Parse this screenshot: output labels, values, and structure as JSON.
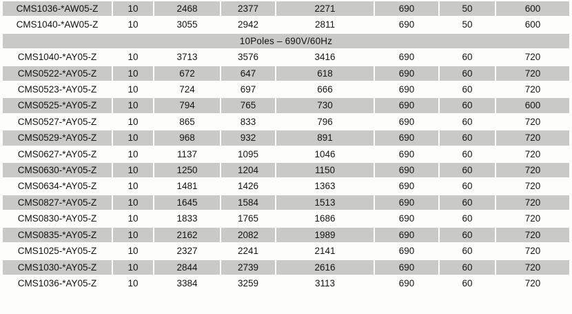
{
  "page": {
    "background_color": "#fdfdfc",
    "text_color": "#141414"
  },
  "table": {
    "column_count": 8,
    "row_shade_color": "#c9c9c5",
    "rows": [
      {
        "type": "data",
        "shaded": true,
        "cells": [
          "CMS1036-*AW05-Z",
          "10",
          "2468",
          "2377",
          "2271",
          "690",
          "50",
          "600"
        ]
      },
      {
        "type": "data",
        "shaded": false,
        "cells": [
          "CMS1040-*AW05-Z",
          "10",
          "3055",
          "2942",
          "2811",
          "690",
          "50",
          "600"
        ]
      },
      {
        "type": "section",
        "shaded": true,
        "label": "10Poles – 690V/60Hz"
      },
      {
        "type": "data",
        "shaded": false,
        "cells": [
          "CMS1040-*AY05-Z",
          "10",
          "3713",
          "3576",
          "3416",
          "690",
          "60",
          "720"
        ]
      },
      {
        "type": "data",
        "shaded": true,
        "cells": [
          "CMS0522-*AY05-Z",
          "10",
          "672",
          "647",
          "618",
          "690",
          "60",
          "720"
        ]
      },
      {
        "type": "data",
        "shaded": false,
        "cells": [
          "CMS0523-*AY05-Z",
          "10",
          "724",
          "697",
          "666",
          "690",
          "60",
          "720"
        ]
      },
      {
        "type": "data",
        "shaded": true,
        "cells": [
          "CMS0525-*AY05-Z",
          "10",
          "794",
          "765",
          "730",
          "690",
          "60",
          "600"
        ]
      },
      {
        "type": "data",
        "shaded": false,
        "cells": [
          "CMS0527-*AY05-Z",
          "10",
          "865",
          "833",
          "796",
          "690",
          "60",
          "720"
        ]
      },
      {
        "type": "data",
        "shaded": true,
        "cells": [
          "CMS0529-*AY05-Z",
          "10",
          "968",
          "932",
          "891",
          "690",
          "60",
          "720"
        ]
      },
      {
        "type": "data",
        "shaded": false,
        "cells": [
          "CMS0627-*AY05-Z",
          "10",
          "1137",
          "1095",
          "1046",
          "690",
          "60",
          "720"
        ]
      },
      {
        "type": "data",
        "shaded": true,
        "cells": [
          "CMS0630-*AY05-Z",
          "10",
          "1250",
          "1204",
          "1150",
          "690",
          "60",
          "720"
        ]
      },
      {
        "type": "data",
        "shaded": false,
        "cells": [
          "CMS0634-*AY05-Z",
          "10",
          "1481",
          "1426",
          "1363",
          "690",
          "60",
          "720"
        ]
      },
      {
        "type": "data",
        "shaded": true,
        "cells": [
          "CMS0827-*AY05-Z",
          "10",
          "1645",
          "1584",
          "1513",
          "690",
          "60",
          "720"
        ]
      },
      {
        "type": "data",
        "shaded": false,
        "cells": [
          "CMS0830-*AY05-Z",
          "10",
          "1833",
          "1765",
          "1686",
          "690",
          "60",
          "720"
        ]
      },
      {
        "type": "data",
        "shaded": true,
        "cells": [
          "CMS0835-*AY05-Z",
          "10",
          "2162",
          "2082",
          "1989",
          "690",
          "60",
          "720"
        ]
      },
      {
        "type": "data",
        "shaded": false,
        "cells": [
          "CMS1025-*AY05-Z",
          "10",
          "2327",
          "2241",
          "2141",
          "690",
          "60",
          "720"
        ]
      },
      {
        "type": "data",
        "shaded": true,
        "cells": [
          "CMS1030-*AY05-Z",
          "10",
          "2844",
          "2739",
          "2616",
          "690",
          "60",
          "720"
        ]
      },
      {
        "type": "data",
        "shaded": false,
        "cells": [
          "CMS1036-*AY05-Z",
          "10",
          "3384",
          "3259",
          "3113",
          "690",
          "60",
          "720"
        ]
      }
    ]
  }
}
